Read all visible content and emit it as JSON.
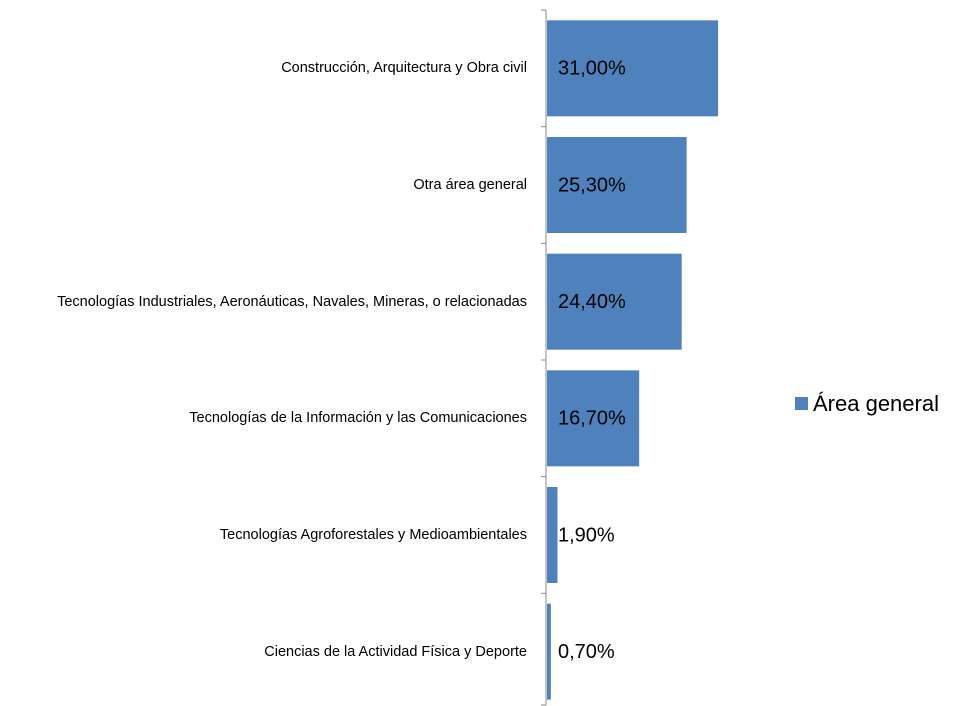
{
  "chart_data": {
    "type": "bar",
    "orientation": "horizontal",
    "categories": [
      "Construcción, Arquitectura y Obra civil",
      "Otra área general",
      "Tecnologías Industriales, Aeronáuticas, Navales, Mineras, o relacionadas",
      "Tecnologías de la Información y las Comunicaciones",
      "Tecnologías Agroforestales y Medioambientales",
      "Ciencias de la Actividad Física y Deporte"
    ],
    "series": [
      {
        "name": "Área general",
        "color": "#4f81bd",
        "values": [
          31.0,
          25.3,
          24.4,
          16.7,
          1.9,
          0.7
        ],
        "value_labels": [
          "31,00%",
          "25,30%",
          "24,40%",
          "16,70%",
          "1,90%",
          "0,70%"
        ]
      }
    ],
    "legend": "right"
  }
}
